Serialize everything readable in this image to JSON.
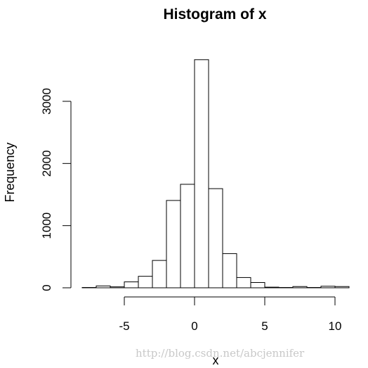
{
  "chart_data": {
    "type": "bar",
    "title": "Histogram of x",
    "xlabel": "x",
    "ylabel": "Frequency",
    "bin_edges": [
      -8,
      -7,
      -6,
      -5,
      -4,
      -3,
      -2,
      -1,
      0,
      1,
      2,
      3,
      4,
      5,
      6,
      7,
      8,
      9,
      10,
      11
    ],
    "values": [
      5,
      30,
      15,
      95,
      185,
      440,
      1405,
      1665,
      3670,
      1595,
      550,
      165,
      85,
      10,
      5,
      20,
      5,
      25,
      20
    ],
    "xlim": [
      -8,
      11
    ],
    "ylim": [
      0,
      3670
    ],
    "x_ticks": [
      -5,
      0,
      5,
      10
    ],
    "y_ticks": [
      0,
      1000,
      2000,
      3000
    ],
    "grid": false,
    "legend": "none"
  },
  "watermark": "http://blog.csdn.net/abcjennifer"
}
